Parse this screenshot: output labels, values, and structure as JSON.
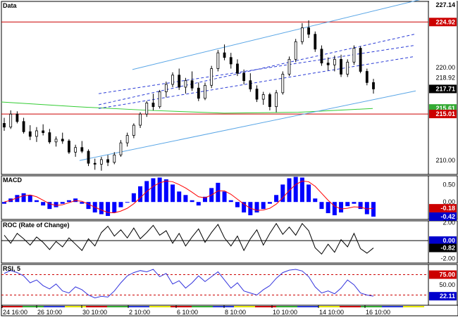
{
  "colors": {
    "background": "#ffffff",
    "axis_bg": "#ffffff",
    "bull_candle": "#ffffff",
    "bear_candle": "#000000",
    "channel": "#5aa6e6",
    "channel_dash": "#2a3bd6",
    "resistance": "#cc0000",
    "ma_green": "#33cc33",
    "macd_bar": "#0000ff",
    "macd_signal": "#ff0000",
    "roc_line": "#000000",
    "rsi_line": "#3333dd",
    "rsi_guides": "#cc0000",
    "badge_black": "#000000",
    "badge_red": "#cc0000",
    "badge_green": "#33aa33",
    "badge_blue": "#0000cc",
    "time_strip": [
      "#cc0000",
      "#33aa33",
      "#2a3bd6",
      "#e8e800"
    ]
  },
  "chart_data": [
    {
      "type": "candlestick",
      "panel_title": "Data",
      "ylim": [
        208.5,
        227.14
      ],
      "yticks": [
        210,
        215,
        220
      ],
      "price_labels": {
        "top": "227.14",
        "resistance": "224.92",
        "r220": "220.00",
        "last": "217.71",
        "support": "215.01",
        "green_a": "215.61",
        "green_b": "215.40",
        "support_line_value": "218.92",
        "low_y": "210.00",
        "mid_left": "215.55"
      },
      "resistance_level": 224.92,
      "support_level": 215.01,
      "last_price": 217.71,
      "green_ma": {
        "x": [
          0,
          20,
          40,
          60,
          80,
          100
        ],
        "y": [
          216.3,
          215.8,
          215.4,
          215.1,
          215.2,
          215.6
        ]
      },
      "channel": {
        "upper_start": 219.8,
        "upper_end": 227.4,
        "lower_start": 210.0,
        "lower_end": 217.5,
        "x_start": 15,
        "x_end": 100
      },
      "dashed_lines": [
        {
          "start": 216.0,
          "end": 223.6
        },
        {
          "start": 217.2,
          "end": 222.4
        },
        {
          "start": 215.6,
          "end": 221.2
        }
      ],
      "candles": [
        [
          214.0,
          214.6,
          213.2,
          213.6
        ],
        [
          213.6,
          215.4,
          213.4,
          215.0
        ],
        [
          215.0,
          215.3,
          214.0,
          214.2
        ],
        [
          214.2,
          214.6,
          212.9,
          213.1
        ],
        [
          213.1,
          213.8,
          212.2,
          212.6
        ],
        [
          212.6,
          213.6,
          212.0,
          213.2
        ],
        [
          213.2,
          213.9,
          212.7,
          213.0
        ],
        [
          213.0,
          213.4,
          211.8,
          212.0
        ],
        [
          212.0,
          212.6,
          211.5,
          212.3
        ],
        [
          212.3,
          213.0,
          211.8,
          212.1
        ],
        [
          212.1,
          212.3,
          210.7,
          210.9
        ],
        [
          210.9,
          211.7,
          210.4,
          211.4
        ],
        [
          211.4,
          212.1,
          210.8,
          211.0
        ],
        [
          211.0,
          211.2,
          209.4,
          209.7
        ],
        [
          209.7,
          210.2,
          209.0,
          209.6
        ],
        [
          209.6,
          210.4,
          208.9,
          210.1
        ],
        [
          210.1,
          210.6,
          209.4,
          209.8
        ],
        [
          209.8,
          210.9,
          209.6,
          210.6
        ],
        [
          210.6,
          212.2,
          210.4,
          211.9
        ],
        [
          211.9,
          213.0,
          211.5,
          212.7
        ],
        [
          212.7,
          214.0,
          212.4,
          213.8
        ],
        [
          213.8,
          215.2,
          213.5,
          215.0
        ],
        [
          215.0,
          216.4,
          214.7,
          216.2
        ],
        [
          216.2,
          217.2,
          215.4,
          215.8
        ],
        [
          215.8,
          217.6,
          215.6,
          217.4
        ],
        [
          217.4,
          218.5,
          216.8,
          218.2
        ],
        [
          218.2,
          219.5,
          217.9,
          219.2
        ],
        [
          219.2,
          219.9,
          217.6,
          217.9
        ],
        [
          217.9,
          218.9,
          217.2,
          218.6
        ],
        [
          218.6,
          219.6,
          217.5,
          217.8
        ],
        [
          217.8,
          218.4,
          216.4,
          216.7
        ],
        [
          216.7,
          218.4,
          216.5,
          218.1
        ],
        [
          218.1,
          220.2,
          217.8,
          219.9
        ],
        [
          219.9,
          221.9,
          219.6,
          221.6
        ],
        [
          221.6,
          222.5,
          220.8,
          221.1
        ],
        [
          221.1,
          221.6,
          219.9,
          220.4
        ],
        [
          220.4,
          220.9,
          219.1,
          219.4
        ],
        [
          219.4,
          219.8,
          218.2,
          218.6
        ],
        [
          218.6,
          219.4,
          217.4,
          217.7
        ],
        [
          217.7,
          218.1,
          216.3,
          216.6
        ],
        [
          216.6,
          217.4,
          216.0,
          217.1
        ],
        [
          217.1,
          217.3,
          215.4,
          215.8
        ],
        [
          215.8,
          217.6,
          215.2,
          217.3
        ],
        [
          217.3,
          219.6,
          217.1,
          219.3
        ],
        [
          219.3,
          221.2,
          219.1,
          220.9
        ],
        [
          220.9,
          223.1,
          220.6,
          222.8
        ],
        [
          222.8,
          224.8,
          222.5,
          224.3
        ],
        [
          224.3,
          225.1,
          223.2,
          223.6
        ],
        [
          223.6,
          223.9,
          221.7,
          222.0
        ],
        [
          222.0,
          222.4,
          220.2,
          220.5
        ],
        [
          220.5,
          221.1,
          219.7,
          220.3
        ],
        [
          220.3,
          221.3,
          219.6,
          220.9
        ],
        [
          220.9,
          221.4,
          219.0,
          219.3
        ],
        [
          219.3,
          220.9,
          219.0,
          220.6
        ],
        [
          220.6,
          222.4,
          220.3,
          222.1
        ],
        [
          222.1,
          222.3,
          219.4,
          219.6
        ],
        [
          219.6,
          219.9,
          218.1,
          218.4
        ],
        [
          218.4,
          218.8,
          217.2,
          217.71
        ]
      ]
    },
    {
      "type": "histogram",
      "panel_title": "MACD",
      "ylim": [
        -0.5,
        0.75
      ],
      "yticks": [
        "0.50",
        "0.00"
      ],
      "last_value_labels": [
        "-0.18",
        "-0.42"
      ],
      "values": [
        -0.05,
        0.1,
        0.2,
        0.25,
        0.2,
        0.05,
        -0.1,
        -0.2,
        -0.15,
        -0.05,
        0.05,
        0.1,
        -0.05,
        -0.2,
        -0.3,
        -0.35,
        -0.4,
        -0.3,
        -0.15,
        0.0,
        0.25,
        0.45,
        0.6,
        0.68,
        0.7,
        0.65,
        0.5,
        0.3,
        0.2,
        0.05,
        -0.1,
        0.15,
        0.4,
        0.55,
        0.3,
        0.05,
        -0.15,
        -0.3,
        -0.38,
        -0.3,
        -0.2,
        -0.05,
        0.2,
        0.5,
        0.68,
        0.72,
        0.7,
        0.5,
        0.1,
        -0.2,
        -0.32,
        -0.38,
        -0.3,
        -0.12,
        -0.05,
        -0.2,
        -0.35,
        -0.42
      ],
      "signal": [
        0.0,
        0.05,
        0.12,
        0.18,
        0.2,
        0.15,
        0.05,
        -0.05,
        -0.1,
        -0.08,
        -0.02,
        0.04,
        0.02,
        -0.06,
        -0.15,
        -0.23,
        -0.3,
        -0.31,
        -0.26,
        -0.18,
        -0.05,
        0.12,
        0.3,
        0.45,
        0.55,
        0.6,
        0.58,
        0.5,
        0.4,
        0.28,
        0.15,
        0.12,
        0.2,
        0.32,
        0.32,
        0.22,
        0.08,
        -0.06,
        -0.18,
        -0.24,
        -0.23,
        -0.18,
        -0.06,
        0.12,
        0.33,
        0.5,
        0.6,
        0.58,
        0.45,
        0.25,
        0.05,
        -0.12,
        -0.2,
        -0.18,
        -0.14,
        -0.15,
        -0.2,
        -0.18
      ]
    },
    {
      "type": "line",
      "panel_title": "ROC (Rate of Change)",
      "ylim": [
        -2.5,
        2.2
      ],
      "yticks": [
        "2.00",
        "0.00",
        "-2.00"
      ],
      "last_value_labels": [
        "0.00",
        "-0.82"
      ],
      "values": [
        0.6,
        -0.3,
        0.8,
        0.2,
        -0.5,
        0.4,
        -0.2,
        -1.0,
        -0.1,
        -0.7,
        0.3,
        -0.4,
        -1.1,
        0.2,
        -0.6,
        0.9,
        1.6,
        0.5,
        1.2,
        0.3,
        1.4,
        0.2,
        0.9,
        1.7,
        0.6,
        1.1,
        -0.3,
        0.8,
        -0.6,
        0.4,
        1.3,
        -0.2,
        0.9,
        1.8,
        0.3,
        -0.6,
        0.5,
        -1.1,
        0.2,
        1.2,
        -0.5,
        0.8,
        1.9,
        0.7,
        1.5,
        0.6,
        1.9,
        1.1,
        -0.8,
        -1.5,
        -0.4,
        -1.3,
        0.1,
        -0.7,
        0.8,
        -0.9,
        -1.4,
        -0.82
      ]
    },
    {
      "type": "line",
      "panel_title": "RSI, 5",
      "ylim": [
        0,
        100
      ],
      "guides": [
        75,
        25
      ],
      "yticks": [
        "75.00",
        "50.00"
      ],
      "last_value_labels": [
        "22.11"
      ],
      "values": [
        78,
        85,
        80,
        72,
        55,
        62,
        48,
        40,
        52,
        35,
        30,
        45,
        38,
        25,
        18,
        22,
        20,
        35,
        55,
        72,
        80,
        85,
        82,
        88,
        70,
        78,
        52,
        60,
        42,
        55,
        72,
        58,
        70,
        82,
        62,
        42,
        55,
        35,
        30,
        25,
        38,
        48,
        66,
        80,
        86,
        88,
        84,
        70,
        45,
        30,
        35,
        28,
        42,
        62,
        50,
        30,
        25,
        22.11
      ]
    }
  ],
  "x_axis": {
    "labels": [
      "24 16:00",
      "26 10:00",
      "30 10:00",
      "2 10:00",
      "6 10:00",
      "8 10:00",
      "10 10:00",
      "14 10:00",
      "16 10:00"
    ]
  }
}
